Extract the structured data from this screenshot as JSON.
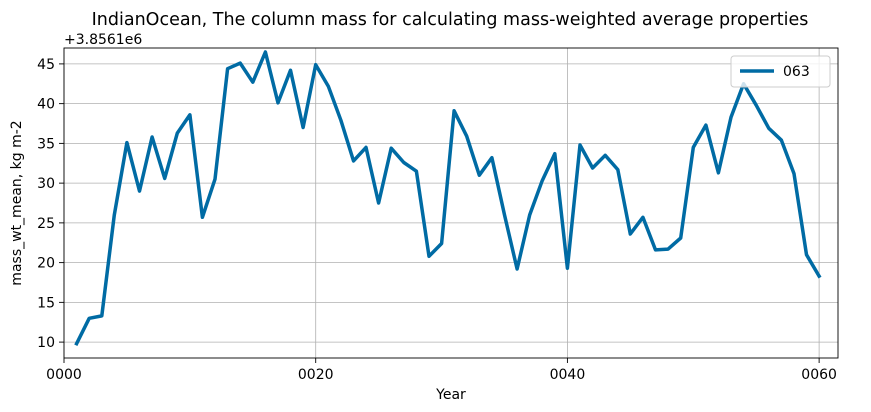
{
  "chart_data": {
    "type": "line",
    "title": "IndianOcean, The column mass for calculating mass-weighted average properties",
    "xlabel": "Year",
    "ylabel": "mass_wt_mean, kg m-2",
    "offset_text": "+3.8561e6",
    "xlim": [
      0,
      61.5
    ],
    "ylim": [
      8,
      47
    ],
    "xticks": [
      0,
      20,
      40,
      60
    ],
    "xtick_labels": [
      "0000",
      "0020",
      "0040",
      "0060"
    ],
    "yticks": [
      10,
      15,
      20,
      25,
      30,
      35,
      40,
      45
    ],
    "ytick_labels": [
      "10",
      "15",
      "20",
      "25",
      "30",
      "35",
      "40",
      "45"
    ],
    "grid": true,
    "legend_position": "top-right",
    "series": [
      {
        "name": "063",
        "color": "#006ba4",
        "x": [
          1,
          2,
          3,
          4,
          5,
          6,
          7,
          8,
          9,
          10,
          11,
          12,
          13,
          14,
          15,
          16,
          17,
          18,
          19,
          20,
          21,
          22,
          23,
          24,
          25,
          26,
          27,
          28,
          29,
          30,
          31,
          32,
          33,
          34,
          35,
          36,
          37,
          38,
          39,
          40,
          41,
          42,
          43,
          44,
          45,
          46,
          47,
          48,
          49,
          50,
          51,
          52,
          53,
          54,
          55,
          56,
          57,
          58,
          59,
          60
        ],
        "y": [
          9.8,
          13.0,
          13.3,
          26.0,
          35.1,
          29.0,
          35.8,
          30.6,
          36.3,
          38.6,
          25.7,
          30.5,
          44.4,
          45.1,
          42.7,
          46.5,
          40.1,
          44.2,
          37.0,
          44.9,
          42.2,
          37.9,
          32.8,
          34.5,
          27.5,
          34.4,
          32.6,
          31.5,
          20.8,
          22.4,
          39.1,
          35.9,
          31.0,
          33.2,
          26.0,
          19.2,
          26.0,
          30.3,
          33.7,
          19.3,
          34.8,
          31.9,
          33.5,
          31.7,
          23.6,
          25.7,
          21.6,
          21.7,
          23.1,
          34.5,
          37.3,
          31.3,
          38.3,
          42.5,
          39.8,
          36.9,
          35.4,
          31.2,
          21.0,
          18.3
        ]
      }
    ]
  }
}
